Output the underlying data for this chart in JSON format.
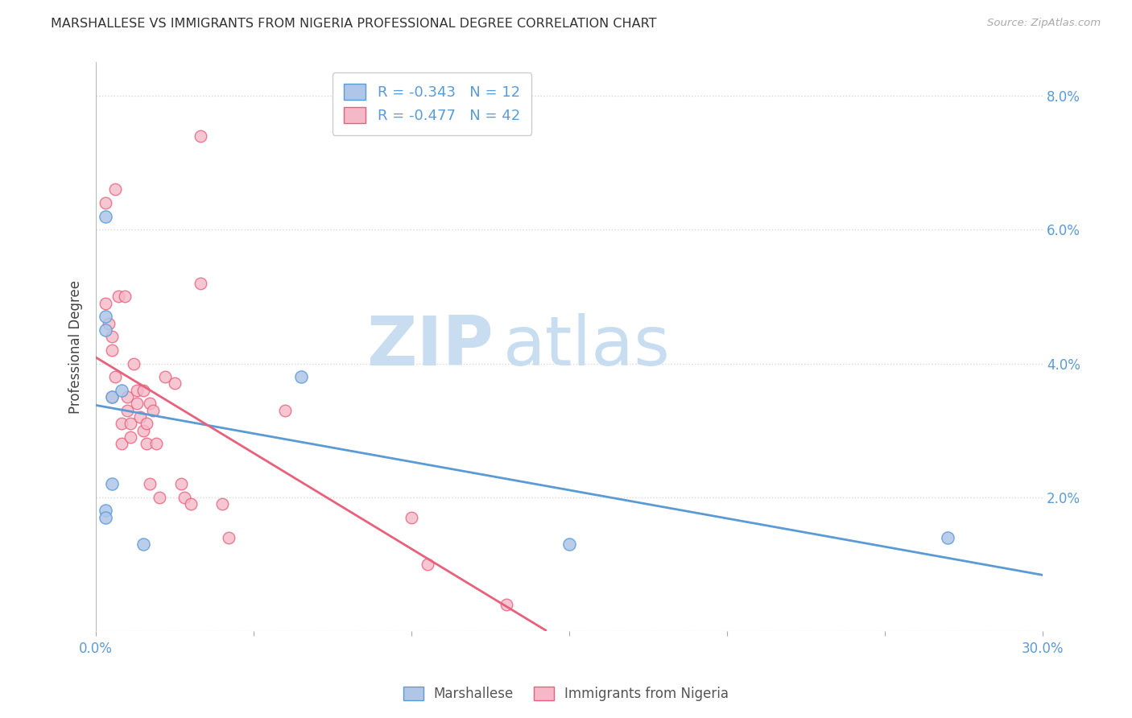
{
  "title": "MARSHALLESE VS IMMIGRANTS FROM NIGERIA PROFESSIONAL DEGREE CORRELATION CHART",
  "source": "Source: ZipAtlas.com",
  "ylabel": "Professional Degree",
  "xlim": [
    0.0,
    0.3
  ],
  "ylim": [
    0.0,
    0.085
  ],
  "xticks": [
    0.0,
    0.05,
    0.1,
    0.15,
    0.2,
    0.25,
    0.3
  ],
  "yticks": [
    0.0,
    0.02,
    0.04,
    0.06,
    0.08
  ],
  "blue_R": -0.343,
  "blue_N": 12,
  "pink_R": -0.477,
  "pink_N": 42,
  "blue_color": "#aec6e8",
  "pink_color": "#f5b8c8",
  "blue_line_color": "#5b9bd5",
  "pink_line_color": "#e8607a",
  "tick_color": "#5b9bd5",
  "legend_text_color": "#5b9bd5",
  "watermark_zip": "ZIP",
  "watermark_atlas": "atlas",
  "blue_scatter_x": [
    0.003,
    0.003,
    0.003,
    0.003,
    0.003,
    0.005,
    0.005,
    0.008,
    0.015,
    0.065,
    0.15,
    0.27
  ],
  "blue_scatter_y": [
    0.062,
    0.047,
    0.045,
    0.018,
    0.017,
    0.035,
    0.022,
    0.036,
    0.013,
    0.038,
    0.013,
    0.014
  ],
  "pink_scatter_x": [
    0.003,
    0.003,
    0.004,
    0.005,
    0.005,
    0.005,
    0.006,
    0.006,
    0.007,
    0.008,
    0.008,
    0.009,
    0.01,
    0.01,
    0.011,
    0.011,
    0.012,
    0.013,
    0.013,
    0.014,
    0.015,
    0.015,
    0.016,
    0.016,
    0.017,
    0.017,
    0.018,
    0.019,
    0.02,
    0.022,
    0.025,
    0.027,
    0.028,
    0.03,
    0.033,
    0.033,
    0.04,
    0.042,
    0.06,
    0.1,
    0.105,
    0.13
  ],
  "pink_scatter_y": [
    0.049,
    0.064,
    0.046,
    0.044,
    0.042,
    0.035,
    0.066,
    0.038,
    0.05,
    0.031,
    0.028,
    0.05,
    0.035,
    0.033,
    0.031,
    0.029,
    0.04,
    0.036,
    0.034,
    0.032,
    0.036,
    0.03,
    0.031,
    0.028,
    0.034,
    0.022,
    0.033,
    0.028,
    0.02,
    0.038,
    0.037,
    0.022,
    0.02,
    0.019,
    0.052,
    0.074,
    0.019,
    0.014,
    0.033,
    0.017,
    0.01,
    0.004
  ],
  "background_color": "#ffffff",
  "grid_color": "#d8d8d8"
}
